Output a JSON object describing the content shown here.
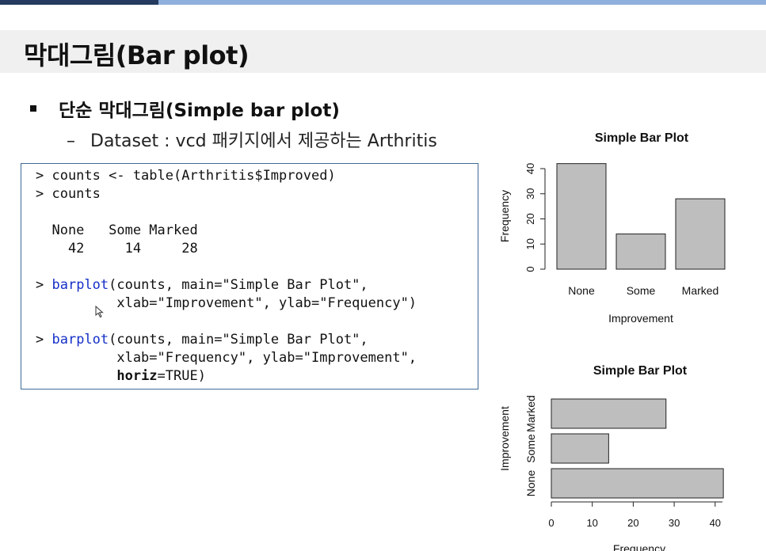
{
  "slide": {
    "title": "막대그림(Bar plot)",
    "bullet": "단순 막대그림(Simple bar plot)",
    "sub_dash": "–",
    "sub_text": "Dataset : vcd 패키지에서 제공하는 Arthritis"
  },
  "code": {
    "line1": "> counts <- table(Arthritis$Improved)",
    "line2": "> counts",
    "line3": "  None   Some Marked",
    "line4": "    42     14     28",
    "line5_prompt": "> ",
    "line5_fn": "barplot",
    "line5_rest": "(counts, main=\"Simple Bar Plot\",",
    "line6": "          xlab=\"Improvement\", ylab=\"Frequency\")",
    "line7_prompt": "> ",
    "line7_fn": "barplot",
    "line7_rest": "(counts, main=\"Simple Bar Plot\",",
    "line8": "          xlab=\"Frequency\", ylab=\"Improvement\",",
    "line9_indent": "          ",
    "line9_kw": "horiz",
    "line9_rest": "=TRUE)"
  },
  "colors": {
    "bar_fill": "#bebebe",
    "code_border": "#3f6a96",
    "code_function": "#1530c8",
    "topbar_dark": "#243a5e",
    "topbar_light": "#8fb0dc"
  },
  "chart_data": [
    {
      "type": "bar",
      "orientation": "vertical",
      "title": "Simple Bar Plot",
      "xlabel": "Improvement",
      "ylabel": "Frequency",
      "categories": [
        "None",
        "Some",
        "Marked"
      ],
      "values": [
        42,
        14,
        28
      ],
      "ylim": [
        0,
        42
      ],
      "ticks": [
        "0",
        "10",
        "20",
        "30",
        "40"
      ],
      "grid": false
    },
    {
      "type": "bar",
      "orientation": "horizontal",
      "title": "Simple Bar Plot",
      "xlabel": "Frequency",
      "ylabel": "Improvement",
      "categories": [
        "None",
        "Some",
        "Marked"
      ],
      "values": [
        42,
        14,
        28
      ],
      "xlim": [
        0,
        42
      ],
      "ticks": [
        "0",
        "10",
        "20",
        "30",
        "40"
      ],
      "grid": false
    }
  ]
}
